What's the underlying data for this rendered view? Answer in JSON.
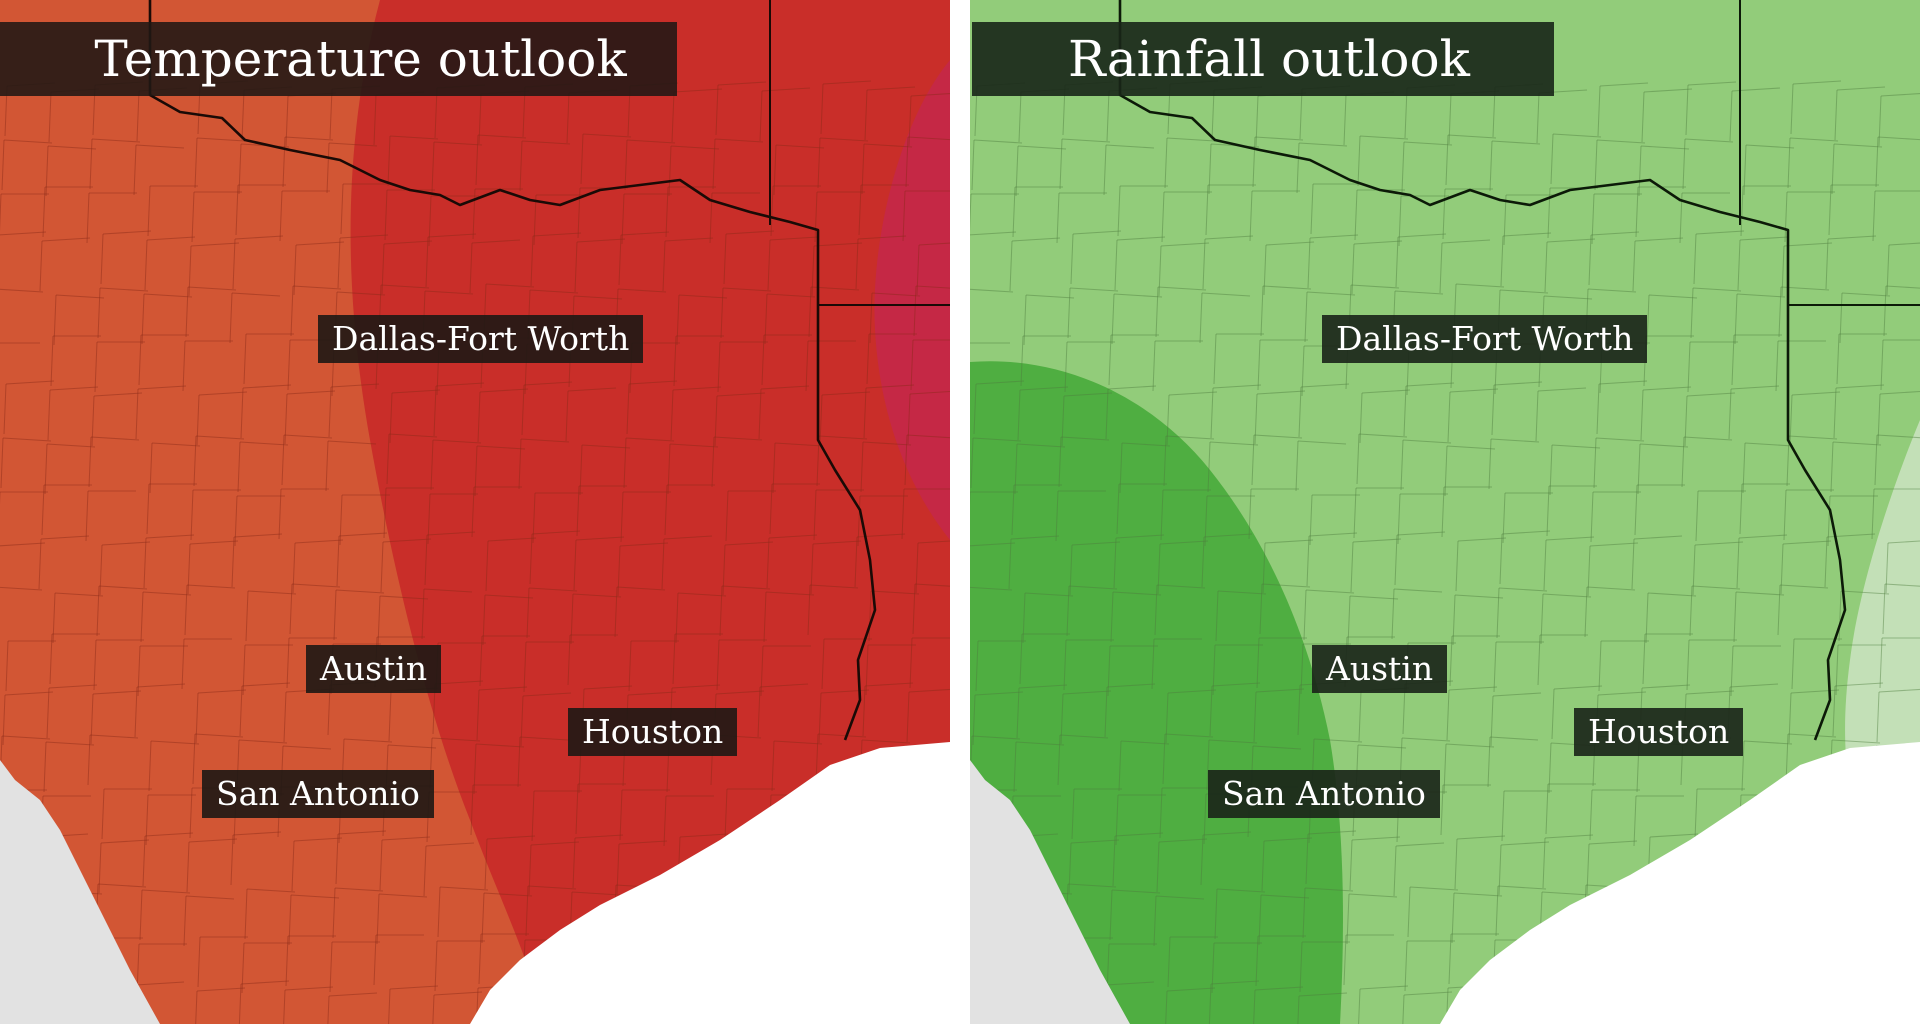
{
  "panels": {
    "temperature": {
      "title": "Temperature outlook",
      "colors": {
        "base": "#d25634",
        "above": "#c82a28",
        "high": "#c42848",
        "outside": "#e2e2e2",
        "water": "#ffffff",
        "county_lines": "#8a2a18",
        "state_line": "#1a0a06"
      },
      "cities": {
        "dallas_fort_worth": "Dallas-Fort Worth",
        "austin": "Austin",
        "houston": "Houston",
        "san_antonio": "San Antonio"
      }
    },
    "rainfall": {
      "title": "Rainfall outlook",
      "colors": {
        "base": "#92cc7a",
        "wetter": "#4aab3c",
        "lighter": "#c8e2bc",
        "outside": "#e2e2e2",
        "water": "#ffffff",
        "county_lines": "#4e7c3e",
        "state_line": "#0c1a08"
      },
      "cities": {
        "dallas_fort_worth": "Dallas-Fort Worth",
        "austin": "Austin",
        "houston": "Houston",
        "san_antonio": "San Antonio"
      }
    }
  }
}
